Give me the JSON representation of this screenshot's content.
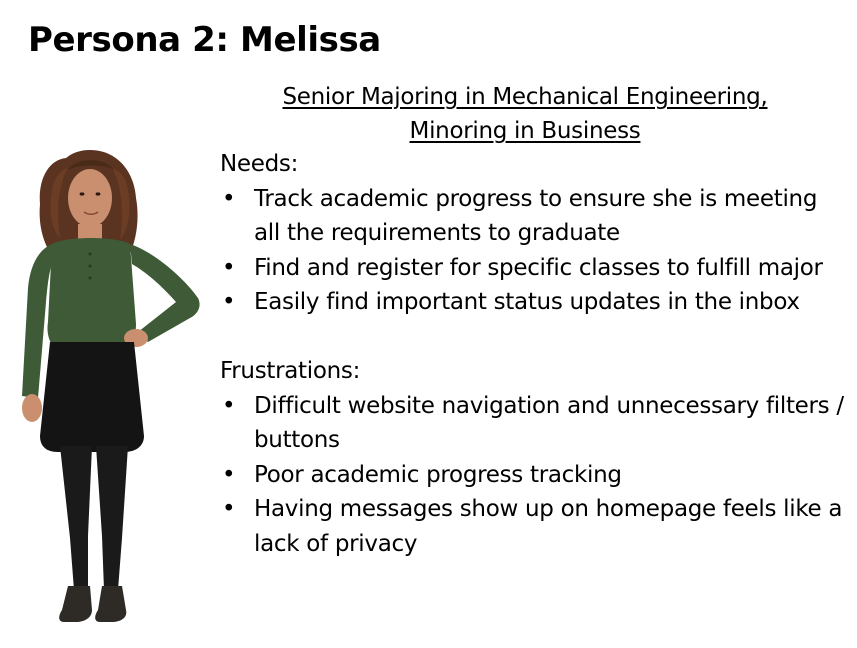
{
  "slide": {
    "title": "Persona 2: Melissa"
  },
  "subtitle": {
    "line1": "Senior Majoring in Mechanical Engineering,",
    "line2": "Minoring in Business"
  },
  "needs": {
    "heading": "Needs:",
    "items": [
      "Track academic progress to ensure she is meeting all the requirements to graduate",
      "Find and register for specific classes to fulfill major",
      "Easily find important status updates in the inbox"
    ]
  },
  "frustrations": {
    "heading": "Frustrations:",
    "items": [
      "Difficult website navigation and unnecessary filters / buttons",
      "Poor academic progress tracking",
      "Having messages show up on homepage feels like a lack of privacy"
    ]
  },
  "photo": {
    "icon": "persona-photo",
    "colors": {
      "shirt": "#3f5a36",
      "skirt": "#141414",
      "tights": "#1a1a1a",
      "skin": "#c98f6e",
      "hair": "#5a3420",
      "shoes": "#2e2a26"
    }
  }
}
